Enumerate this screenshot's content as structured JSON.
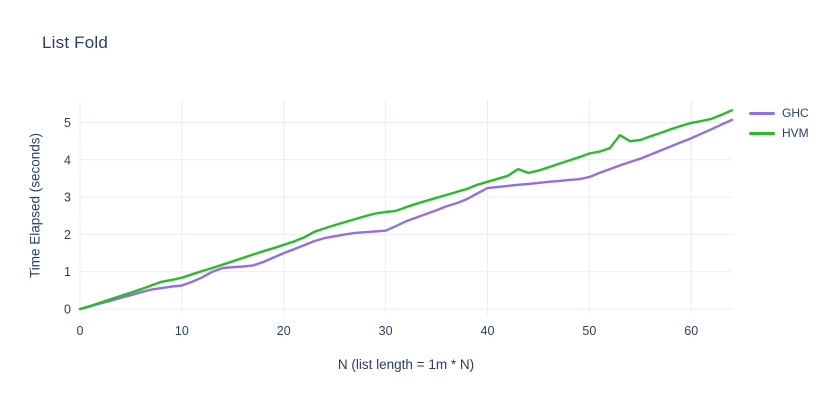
{
  "accent_colors": {
    "text": "#2a3f5f",
    "grid": "#e9eef4",
    "background": "#ffffff"
  },
  "chart_data": {
    "type": "line",
    "title": "List Fold",
    "xlabel": "N (list length = 1m * N)",
    "ylabel": "Time Elapsed (seconds)",
    "xlim": [
      0,
      64
    ],
    "ylim": [
      0,
      5.6
    ],
    "x_ticks": [
      0,
      10,
      20,
      30,
      40,
      50,
      60
    ],
    "y_ticks": [
      0,
      1,
      2,
      3,
      4,
      5
    ],
    "grid": true,
    "legend_position": "right-outside-top",
    "x": [
      0,
      1,
      2,
      3,
      4,
      5,
      6,
      7,
      8,
      9,
      10,
      11,
      12,
      13,
      14,
      15,
      16,
      17,
      18,
      19,
      20,
      21,
      22,
      23,
      24,
      25,
      26,
      27,
      28,
      29,
      30,
      31,
      32,
      33,
      34,
      35,
      36,
      37,
      38,
      39,
      40,
      41,
      42,
      43,
      44,
      45,
      46,
      47,
      48,
      49,
      50,
      51,
      52,
      53,
      54,
      55,
      56,
      57,
      58,
      59,
      60,
      61,
      62,
      63,
      64
    ],
    "series": [
      {
        "name": "GHC",
        "color": "#9370db",
        "values": [
          0.0,
          0.07,
          0.15,
          0.22,
          0.3,
          0.37,
          0.45,
          0.52,
          0.56,
          0.6,
          0.63,
          0.73,
          0.85,
          1.0,
          1.1,
          1.12,
          1.14,
          1.17,
          1.26,
          1.38,
          1.5,
          1.6,
          1.71,
          1.82,
          1.9,
          1.95,
          2.0,
          2.04,
          2.06,
          2.08,
          2.1,
          2.22,
          2.35,
          2.45,
          2.55,
          2.65,
          2.76,
          2.84,
          2.95,
          3.1,
          3.24,
          3.27,
          3.3,
          3.33,
          3.35,
          3.38,
          3.41,
          3.43,
          3.46,
          3.48,
          3.54,
          3.65,
          3.75,
          3.85,
          3.94,
          4.03,
          4.14,
          4.25,
          4.36,
          4.47,
          4.58,
          4.7,
          4.82,
          4.95,
          5.07
        ]
      },
      {
        "name": "HVM",
        "color": "#2eb82e",
        "values": [
          0.0,
          0.08,
          0.17,
          0.26,
          0.35,
          0.44,
          0.53,
          0.63,
          0.73,
          0.78,
          0.84,
          0.93,
          1.02,
          1.1,
          1.19,
          1.28,
          1.37,
          1.46,
          1.55,
          1.63,
          1.72,
          1.81,
          1.92,
          2.07,
          2.16,
          2.25,
          2.33,
          2.41,
          2.49,
          2.56,
          2.6,
          2.63,
          2.73,
          2.82,
          2.9,
          2.98,
          3.06,
          3.14,
          3.22,
          3.33,
          3.41,
          3.49,
          3.57,
          3.75,
          3.65,
          3.71,
          3.8,
          3.89,
          3.98,
          4.07,
          4.17,
          4.22,
          4.31,
          4.66,
          4.5,
          4.53,
          4.63,
          4.72,
          4.82,
          4.91,
          4.99,
          5.04,
          5.1,
          5.21,
          5.33
        ]
      }
    ]
  }
}
